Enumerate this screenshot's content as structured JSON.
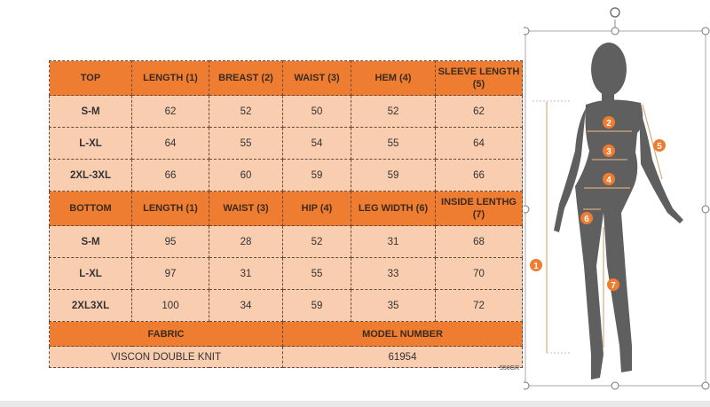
{
  "top_table": {
    "headers": [
      "TOP",
      "LENGTH (1)",
      "BREAST (2)",
      "WAIST (3)",
      "HEM (4)",
      "SLEEVE LENGTH (5)"
    ],
    "rows": [
      [
        "S-M",
        "62",
        "52",
        "50",
        "52",
        "62"
      ],
      [
        "L-XL",
        "64",
        "55",
        "54",
        "55",
        "64"
      ],
      [
        "2XL-3XL",
        "66",
        "60",
        "59",
        "59",
        "66"
      ]
    ]
  },
  "bottom_table": {
    "headers": [
      "BOTTOM",
      "LENGTH (1)",
      "WAIST (3)",
      "HIP (4)",
      "LEG WIDTH (6)",
      "INSIDE LENTHG (7)"
    ],
    "rows": [
      [
        "S-M",
        "95",
        "28",
        "52",
        "31",
        "68"
      ],
      [
        "L-XL",
        "97",
        "31",
        "55",
        "33",
        "70"
      ],
      [
        "2XL3XL",
        "100",
        "34",
        "59",
        "35",
        "72"
      ]
    ]
  },
  "fabric": {
    "label": "FABRIC",
    "value": "VISCON DOUBLE KNIT"
  },
  "model": {
    "label": "MODEL NUMBER",
    "value": "61954"
  },
  "weight": "550GR",
  "figure_markers": [
    "1",
    "2",
    "3",
    "4",
    "5",
    "6",
    "7"
  ],
  "colors": {
    "header": "#ee7d31",
    "cell": "#f9cdb0",
    "silhouette": "#5f5f5f",
    "arrow": "#d9a878"
  }
}
